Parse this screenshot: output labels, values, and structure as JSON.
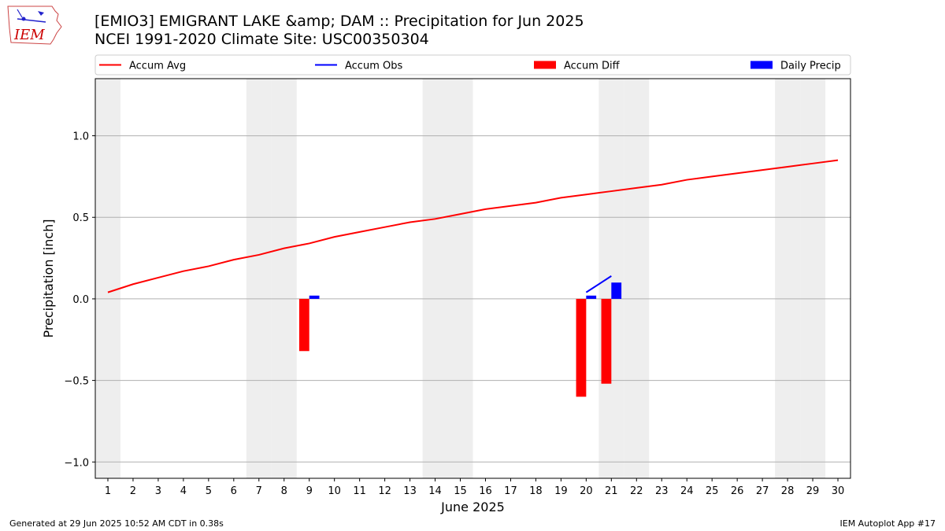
{
  "title": "[EMIO3] EMIGRANT LAKE &amp; DAM :: Precipitation for Jun 2025",
  "subtitle": "NCEI 1991-2020 Climate Site: USC00350304",
  "logo_text": "IEM",
  "footer_left": "Generated at 29 Jun 2025 10:52 AM CDT in 0.38s",
  "footer_right": "IEM Autoplot App #17",
  "colors": {
    "accum_avg": "#ff0000",
    "accum_obs": "#0000ff",
    "accum_diff": "#ff0000",
    "daily_precip": "#0000ff",
    "weekend_shade": "#eeeeee",
    "grid": "#b0b0b0"
  },
  "chart_data": {
    "type": "line",
    "xlabel": "June 2025",
    "ylabel": "Precipitation [inch]",
    "xlim": [
      0.5,
      30.5
    ],
    "ylim": [
      -1.1,
      1.35
    ],
    "yticks": [
      -1.0,
      -0.5,
      0.0,
      0.5,
      1.0
    ],
    "ytick_labels": [
      "−1.0",
      "−0.5",
      "0.0",
      "0.5",
      "1.0"
    ],
    "x": [
      1,
      2,
      3,
      4,
      5,
      6,
      7,
      8,
      9,
      10,
      11,
      12,
      13,
      14,
      15,
      16,
      17,
      18,
      19,
      20,
      21,
      22,
      23,
      24,
      25,
      26,
      27,
      28,
      29,
      30
    ],
    "grid": "horizontal",
    "legend_position": "top",
    "shaded_days": [
      1,
      7,
      8,
      14,
      15,
      21,
      22,
      28,
      29
    ],
    "series": [
      {
        "name": "Accum Avg",
        "kind": "line",
        "x": [
          1,
          2,
          3,
          4,
          5,
          6,
          7,
          8,
          9,
          10,
          11,
          12,
          13,
          14,
          15,
          16,
          17,
          18,
          19,
          20,
          21,
          22,
          23,
          24,
          25,
          26,
          27,
          28,
          29,
          30
        ],
        "values": [
          0.04,
          0.09,
          0.13,
          0.17,
          0.2,
          0.24,
          0.27,
          0.31,
          0.34,
          0.38,
          0.41,
          0.44,
          0.47,
          0.49,
          0.52,
          0.55,
          0.57,
          0.59,
          0.62,
          0.64,
          0.66,
          0.68,
          0.7,
          0.73,
          0.75,
          0.77,
          0.79,
          0.81,
          0.83,
          0.85
        ]
      },
      {
        "name": "Accum Obs",
        "kind": "line",
        "x": [
          20,
          21
        ],
        "values": [
          0.04,
          0.14
        ]
      },
      {
        "name": "Accum Diff",
        "kind": "bar",
        "offset": -0.2,
        "x": [
          9,
          20,
          21
        ],
        "values": [
          -0.32,
          -0.6,
          -0.52
        ]
      },
      {
        "name": "Daily Precip",
        "kind": "bar",
        "offset": 0.2,
        "x": [
          9,
          20,
          21
        ],
        "values": [
          0.02,
          0.02,
          0.1
        ]
      }
    ]
  }
}
